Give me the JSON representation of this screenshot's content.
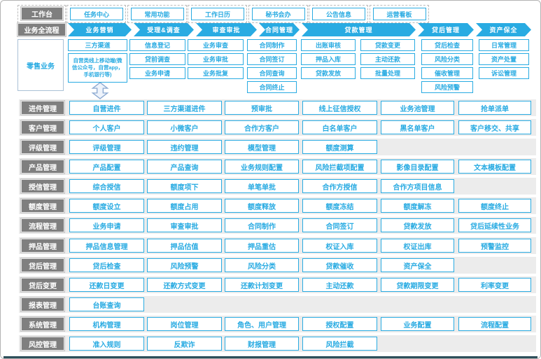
{
  "colors": {
    "accent_blue": "#29ABE2",
    "label_gray": "#7F7F7F",
    "band_gray": "#ECECEC",
    "arrow_outline": "#8AA8D0"
  },
  "workbench": {
    "label": "工作台",
    "items": [
      "任务中心",
      "常用功能",
      "工作日历",
      "秘书会办",
      "公告信息",
      "运营看板"
    ]
  },
  "process": {
    "label": "业务全流程",
    "steps": [
      "业务营销",
      "受理&调查",
      "审查审批",
      "合同管理",
      "贷款管理",
      "贷后管理",
      "资产保全"
    ]
  },
  "retail": {
    "label": "零售业务",
    "columns": [
      [
        "三方渠道",
        "自营类线上移动端(微信公众号，自营app，手机银行等)"
      ],
      [
        "信息登记",
        "贷前调查",
        "业务申请"
      ],
      [
        "业务审查",
        "业务审批",
        "业务批复"
      ],
      [
        "合同制作",
        "合同签订",
        "合同查询",
        "合同终止"
      ],
      [
        "出账审核",
        "押品入库",
        "贷款发放"
      ],
      [
        "贷款变更",
        "主动还款",
        "批量处理"
      ],
      [
        "贷后检查",
        "风险分类",
        "催收管理",
        "风险预警"
      ],
      [
        "日常管理",
        "资产处置",
        "诉讼管理"
      ]
    ]
  },
  "modules": [
    {
      "label": "进件管理",
      "items": [
        "自营进件",
        "三方渠道进件",
        "预审批",
        "线上征信授权",
        "业务池管理",
        "抢单派单"
      ]
    },
    {
      "label": "客户管理",
      "items": [
        "个人客户",
        "小微客户",
        "合作方客户",
        "白名单客户",
        "黑名单客户",
        "客户移交、共享"
      ]
    },
    {
      "label": "评级管理",
      "items": [
        "评级管理",
        "违约管理",
        "模型管理",
        "额度测算"
      ]
    },
    {
      "label": "产品管理",
      "items": [
        "产品配置",
        "产品查询",
        "业务规则配置",
        "风险拦截项配置",
        "影像目录配置",
        "文本模板配置"
      ]
    },
    {
      "label": "授信管理",
      "items": [
        "综合授信",
        "额度项下",
        "单笔单批",
        "合作方授信",
        "合作方项目信息"
      ]
    },
    {
      "label": "额度管理",
      "items": [
        "额度设立",
        "额度占用",
        "额度释放",
        "额度冻结",
        "额度解冻",
        "额度终止"
      ]
    },
    {
      "label": "流程管理",
      "items": [
        "业务申请",
        "审查审批",
        "合同制作",
        "合同签订",
        "贷款发放",
        "贷后延续性业务"
      ]
    },
    {
      "label": "押品管理",
      "items": [
        "押品信息管理",
        "押品估值",
        "押品重估",
        "权证入库",
        "权证出库",
        "预警监控"
      ]
    },
    {
      "label": "贷后管理",
      "items": [
        "贷后检查",
        "风险预警",
        "风险分类",
        "贷款催收",
        "资产保全"
      ]
    },
    {
      "label": "贷后变更",
      "items": [
        "还款日变更",
        "还款方式变更",
        "还款计划变更",
        "主动还款",
        "贷款期限变更",
        "利率变更"
      ]
    },
    {
      "label": "报表管理",
      "items": [
        "台账查询"
      ]
    },
    {
      "label": "系统管理",
      "items": [
        "机构管理",
        "岗位管理",
        "角色、用户管理",
        "授权配置",
        "业务配置",
        "流程配置"
      ]
    },
    {
      "label": "风控管理",
      "items": [
        "准入规则",
        "反欺诈",
        "财报管理",
        "风险拦截"
      ]
    }
  ],
  "icons": {
    "up_down_arrow": "up-down-arrow-icon"
  }
}
